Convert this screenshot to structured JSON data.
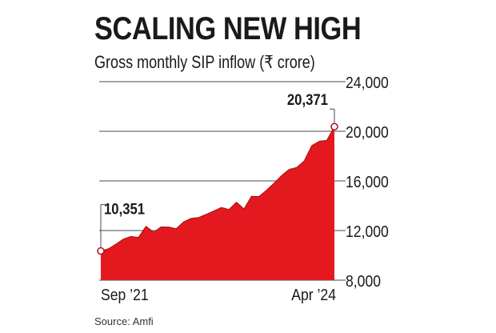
{
  "title": "SCALING NEW HIGH",
  "subtitle": "Gross monthly SIP inflow (₹ crore)",
  "source": "Source: Amfi",
  "colors": {
    "area": "#e3191f",
    "line": "#b01016",
    "gridline": "#4a4a4a",
    "text": "#1a1a1a"
  },
  "chart_data": {
    "type": "area",
    "title": "SCALING NEW HIGH",
    "subtitle": "Gross monthly SIP inflow (₹ crore)",
    "x": [
      "Sep '21",
      "Oct '21",
      "Nov '21",
      "Dec '21",
      "Jan '22",
      "Feb '22",
      "Mar '22",
      "Apr '22",
      "May '22",
      "Jun '22",
      "Jul '22",
      "Aug '22",
      "Sep '22",
      "Oct '22",
      "Nov '22",
      "Dec '22",
      "Jan '23",
      "Feb '23",
      "Mar '23",
      "Apr '23",
      "May '23",
      "Jun '23",
      "Jul '23",
      "Aug '23",
      "Sep '23",
      "Oct '23",
      "Nov '23",
      "Dec '23",
      "Jan '24",
      "Feb '24",
      "Mar '24",
      "Apr '24"
    ],
    "series": [
      {
        "values": [
          10351,
          10519,
          10897,
          11305,
          11517,
          11438,
          12328,
          11863,
          12286,
          12276,
          12140,
          12693,
          12976,
          13041,
          13306,
          13573,
          13856,
          13686,
          14276,
          13728,
          14749,
          14734,
          15245,
          15814,
          16420,
          16928,
          17073,
          17610,
          18838,
          19187,
          19271,
          20371
        ]
      }
    ],
    "xticks": [
      {
        "label": "Sep ’21",
        "index": 0
      },
      {
        "label": "Apr ’24",
        "index": 31
      }
    ],
    "ylim": [
      8000,
      24000
    ],
    "yticks": [
      {
        "value": 8000,
        "label": "8,000"
      },
      {
        "value": 12000,
        "label": "12,000"
      },
      {
        "value": 16000,
        "label": "16,000"
      },
      {
        "value": 20000,
        "label": "20,000"
      },
      {
        "value": 24000,
        "label": "24,000"
      }
    ],
    "annotations": [
      {
        "label": "10,351",
        "index": 0
      },
      {
        "label": "20,371",
        "index": 31
      }
    ],
    "grid": true,
    "y_axis_side": "right",
    "xlabel": "",
    "ylabel": ""
  }
}
